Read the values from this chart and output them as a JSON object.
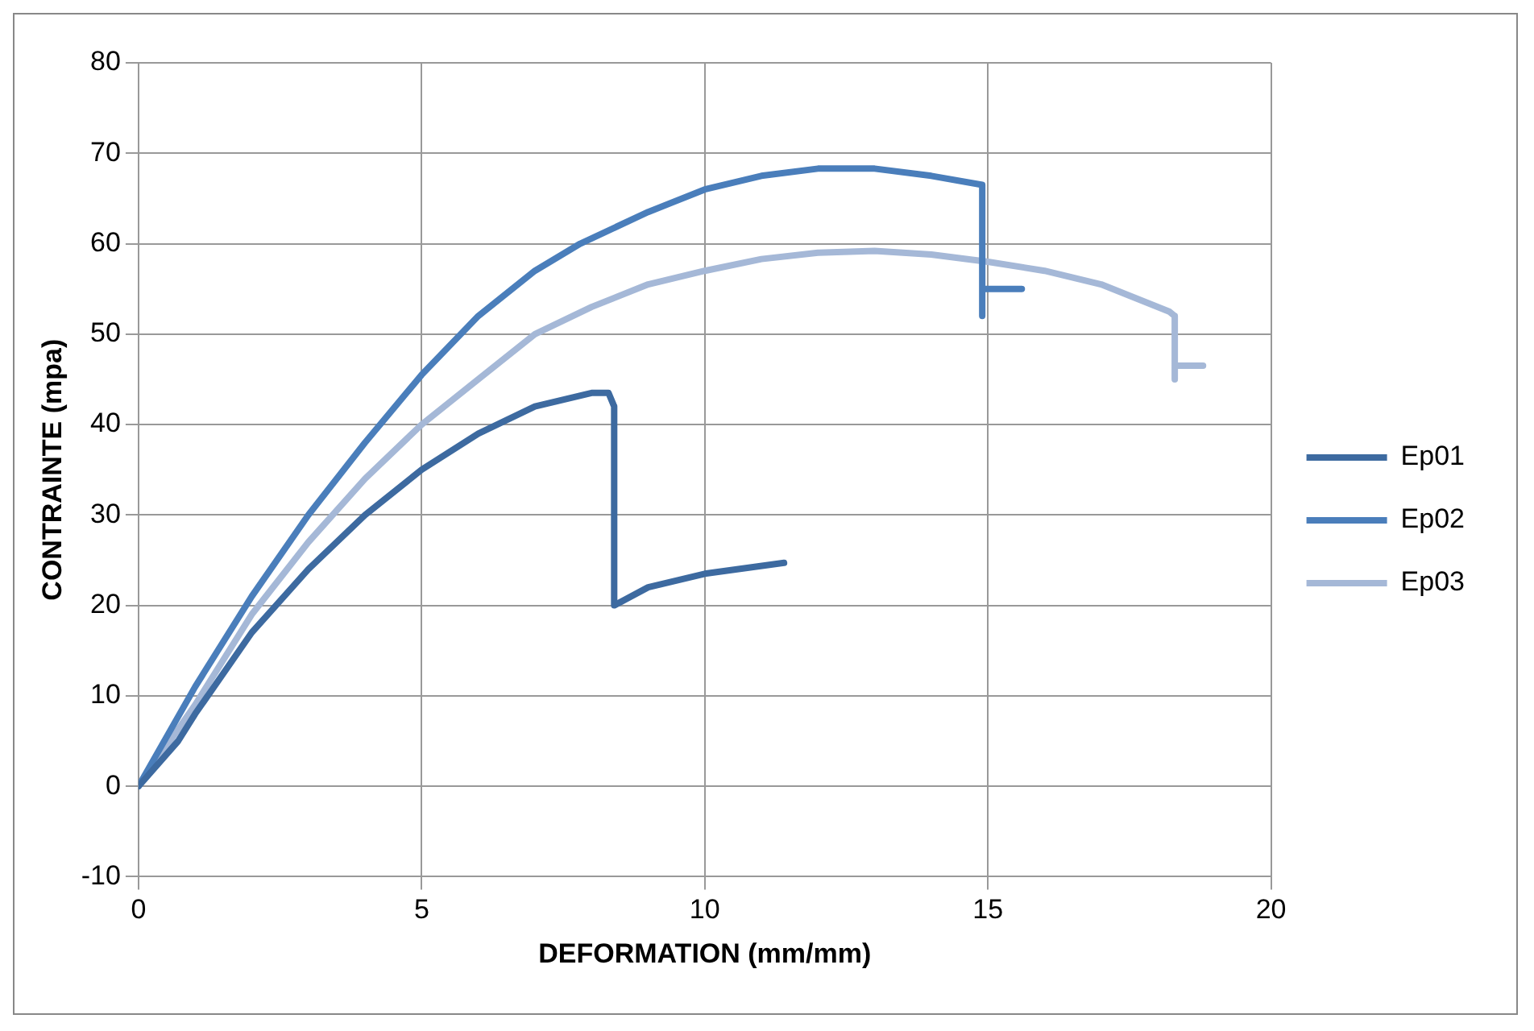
{
  "chart_data": {
    "type": "line",
    "xlabel": "DEFORMATION (mm/mm)",
    "ylabel": "CONTRAINTE (mpa)",
    "xlim": [
      0,
      20
    ],
    "xticks": [
      0,
      5,
      10,
      15,
      20
    ],
    "ylim": [
      -10,
      80
    ],
    "yticks": [
      -10,
      0,
      10,
      20,
      30,
      40,
      50,
      60,
      70,
      80
    ],
    "grid": true,
    "legend": "right",
    "marker": "none",
    "line_style": "solid",
    "series": [
      {
        "name": "Ep01",
        "color": "#3d6aa0",
        "x": [
          0,
          0.7,
          1,
          2,
          3,
          4,
          5,
          6,
          7,
          8,
          8.3,
          8.4,
          8.4,
          9,
          10,
          11.4
        ],
        "values": [
          0,
          5,
          8,
          17,
          24,
          30,
          35,
          39,
          42,
          43.5,
          43.5,
          42,
          20,
          22,
          23.5,
          24.7
        ]
      },
      {
        "name": "Ep02",
        "color": "#4a7ebb",
        "x": [
          0,
          1,
          2,
          3,
          4,
          5,
          6,
          7,
          7.8,
          9,
          10,
          11,
          12,
          13,
          14,
          14.9,
          14.9,
          14.9,
          15.6
        ],
        "values": [
          0,
          11,
          21,
          30,
          38,
          45.5,
          52,
          57,
          60,
          63.5,
          66,
          67.5,
          68.3,
          68.3,
          67.5,
          66.5,
          52,
          55,
          55
        ]
      },
      {
        "name": "Ep03",
        "color": "#a5b8d7",
        "x": [
          0,
          1,
          2,
          3,
          4,
          5,
          6,
          7,
          8,
          9,
          10,
          11,
          12,
          13,
          14,
          15,
          16,
          17,
          18.2,
          18.3,
          18.3,
          18.3,
          18.8
        ],
        "values": [
          0,
          9,
          19,
          27,
          34,
          40,
          45,
          50,
          53,
          55.5,
          57,
          58.3,
          59,
          59.2,
          58.8,
          58,
          57,
          55.5,
          52.5,
          52,
          45,
          46.5,
          46.5
        ]
      }
    ]
  }
}
